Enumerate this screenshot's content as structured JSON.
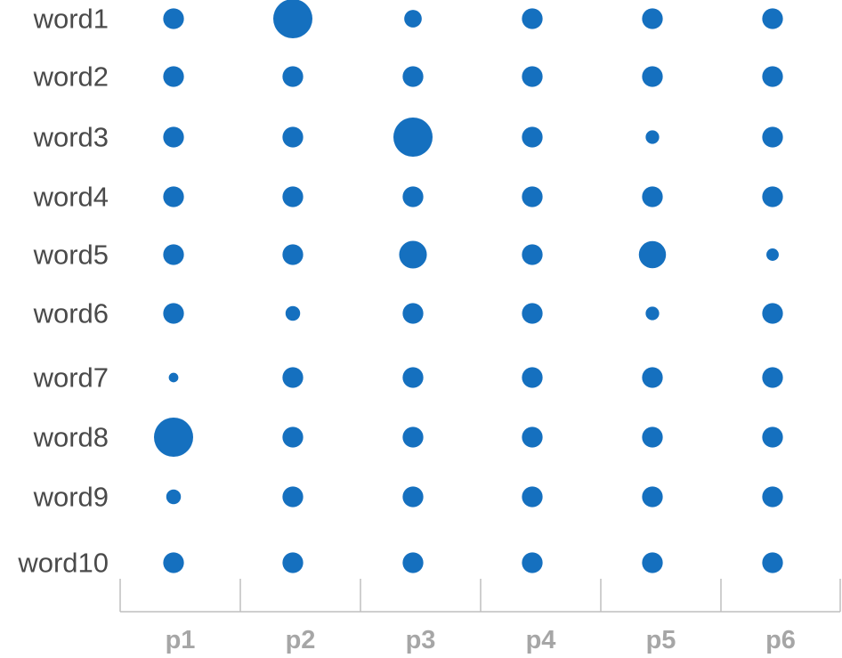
{
  "chart_data": {
    "type": "scatter",
    "subtype": "bubble-matrix",
    "title": "",
    "xlabel": "",
    "ylabel": "",
    "rows": [
      "word1",
      "word2",
      "word3",
      "word4",
      "word5",
      "word6",
      "word7",
      "word8",
      "word9",
      "word10"
    ],
    "columns": [
      "p1",
      "p2",
      "p3",
      "p4",
      "p5",
      "p6"
    ],
    "values": [
      [
        0.14,
        0.5,
        0.1,
        0.14,
        0.14,
        0.14
      ],
      [
        0.14,
        0.14,
        0.14,
        0.14,
        0.14,
        0.14
      ],
      [
        0.14,
        0.14,
        0.5,
        0.14,
        0.06,
        0.14
      ],
      [
        0.14,
        0.14,
        0.14,
        0.14,
        0.14,
        0.14
      ],
      [
        0.14,
        0.14,
        0.25,
        0.14,
        0.24,
        0.05
      ],
      [
        0.14,
        0.07,
        0.14,
        0.14,
        0.06,
        0.14
      ],
      [
        0.03,
        0.14,
        0.14,
        0.14,
        0.14,
        0.14
      ],
      [
        0.5,
        0.14,
        0.14,
        0.14,
        0.14,
        0.14
      ],
      [
        0.07,
        0.14,
        0.14,
        0.14,
        0.14,
        0.14
      ],
      [
        0.14,
        0.14,
        0.14,
        0.14,
        0.14,
        0.14
      ]
    ],
    "value_scale": "bubble area",
    "grid": false,
    "legend": "none",
    "colors": {
      "bubble": "#1570bf",
      "row_label": "#4a4a4a",
      "column_label": "#a6a6a6",
      "axis": "#bfbfbf"
    }
  }
}
